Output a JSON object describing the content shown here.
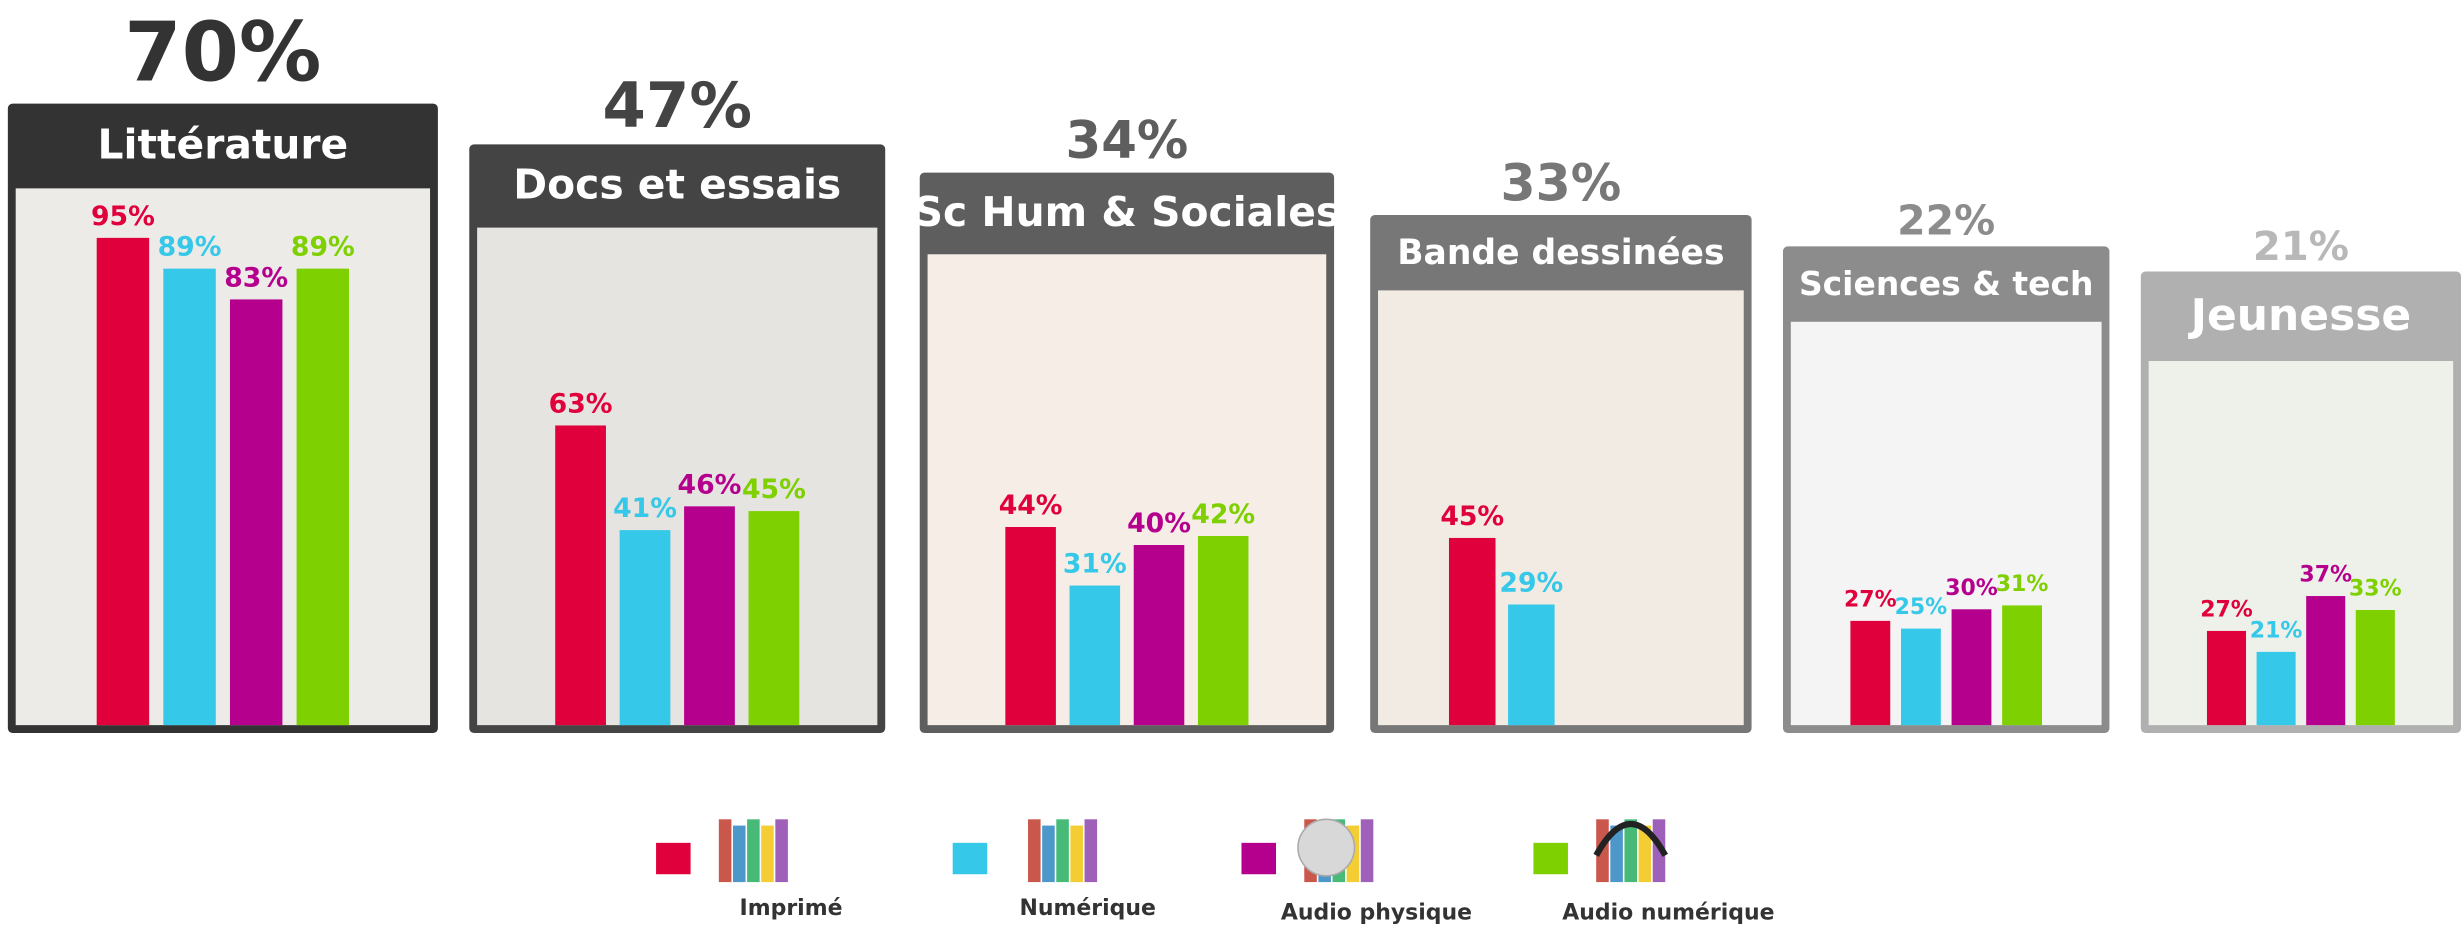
{
  "chart_data": [
    {
      "type": "bar",
      "title": "Littérature",
      "headline": {
        "value": 70,
        "label": "70%"
      },
      "values": [
        95,
        89,
        83,
        89
      ],
      "value_labels": [
        "95%",
        "89%",
        "83%",
        "89%"
      ]
    },
    {
      "type": "bar",
      "title": "Docs et essais",
      "headline": {
        "value": 47,
        "label": "47%"
      },
      "values": [
        63,
        41,
        46,
        45
      ],
      "value_labels": [
        "63%",
        "41%",
        "46%",
        "45%"
      ]
    },
    {
      "type": "bar",
      "title": "Sc Hum & Sociales",
      "headline": {
        "value": 34,
        "label": "34%"
      },
      "values": [
        44,
        31,
        40,
        42
      ],
      "value_labels": [
        "44%",
        "31%",
        "40%",
        "42%"
      ]
    },
    {
      "type": "bar",
      "title": "Bande dessinées",
      "headline": {
        "value": 33,
        "label": "33%"
      },
      "values": [
        45,
        29
      ],
      "value_labels": [
        "45%",
        "29%"
      ]
    },
    {
      "type": "bar",
      "title": "Sciences & tech",
      "headline": {
        "value": 22,
        "label": "22%"
      },
      "values": [
        27,
        25,
        30,
        31
      ],
      "value_labels": [
        "27%",
        "25%",
        "30%",
        "31%"
      ]
    },
    {
      "type": "bar",
      "title": "Jeunesse",
      "headline": {
        "value": 21,
        "label": "21%"
      },
      "values": [
        27,
        21,
        37,
        33
      ],
      "value_labels": [
        "27%",
        "21%",
        "37%",
        "33%"
      ]
    }
  ],
  "legend": [
    {
      "name": "Imprimé",
      "color": "#e0003c"
    },
    {
      "name": "Numérique",
      "color": "#35c8e8"
    },
    {
      "name": "Audio physique",
      "color": "#b5008e"
    },
    {
      "name": "Audio numérique",
      "color": "#7ed000"
    }
  ]
}
